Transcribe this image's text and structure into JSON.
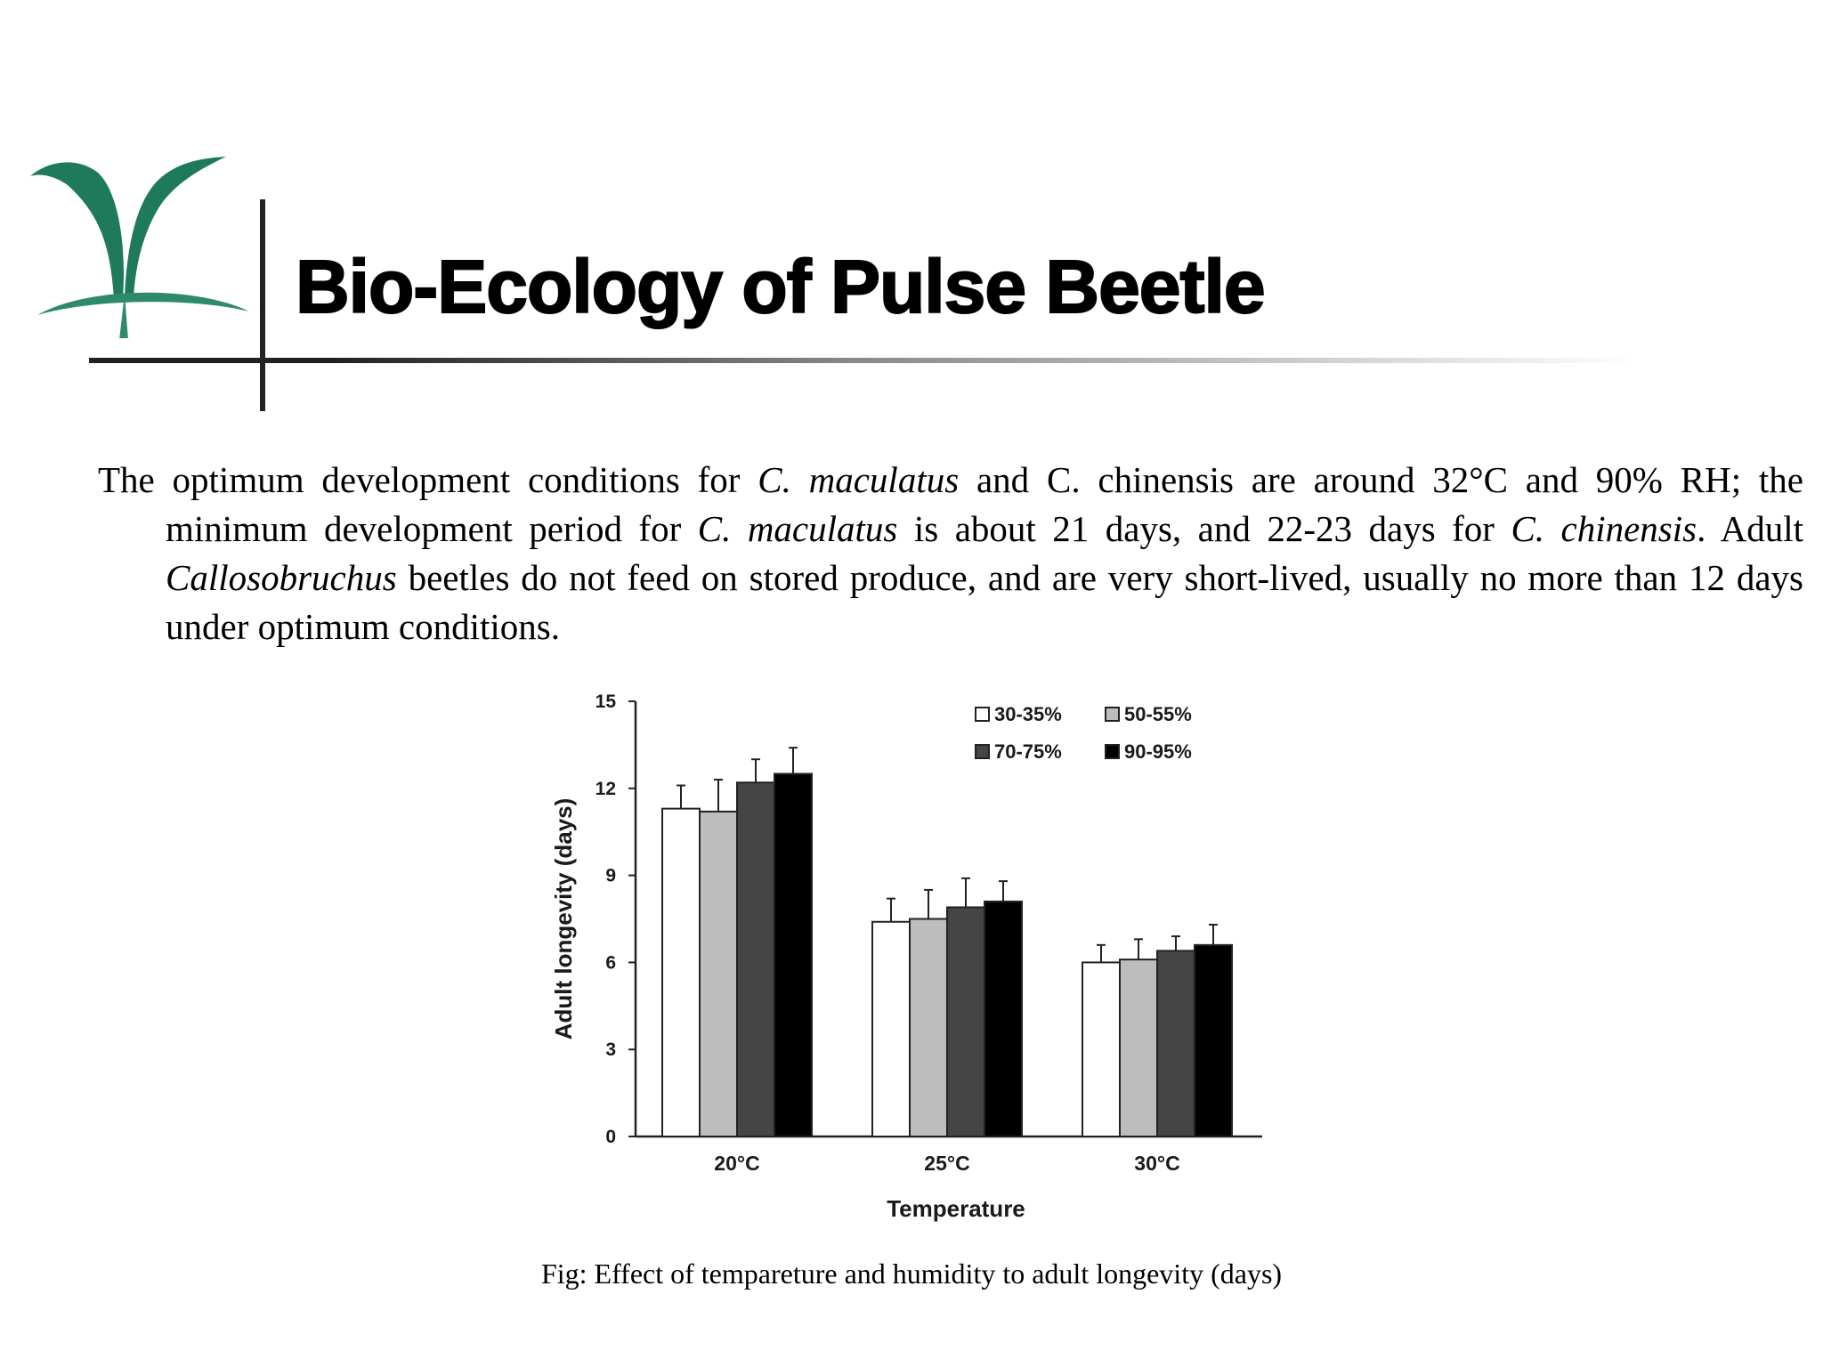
{
  "slide": {
    "title": "Bio-Ecology of Pulse Beetle",
    "paragraph": [
      {
        "text": "The optimum development conditions for ",
        "italic": false
      },
      {
        "text": "C. maculatus",
        "italic": true
      },
      {
        "text": " and C. chinensis are around 32°C and 90% RH; the minimum development period for ",
        "italic": false
      },
      {
        "text": "C. maculatus",
        "italic": true
      },
      {
        "text": " is about 21 days, and 22-23 days for ",
        "italic": false
      },
      {
        "text": "C. chinensis",
        "italic": true
      },
      {
        "text": ". Adult ",
        "italic": false
      },
      {
        "text": "Callosobruchus",
        "italic": true
      },
      {
        "text": " beetles do not feed on stored produce, and are very short-lived, usually no more than 12 days under optimum conditions.",
        "italic": false
      }
    ],
    "caption": "Fig: Effect of tempareture and humidity to adult longevity (days)",
    "logo_colors": {
      "leaf": "#1f7a5c",
      "stem": "#2f8a6a"
    }
  },
  "chart_data": {
    "type": "bar",
    "title": "",
    "xlabel": "Temperature",
    "ylabel": "Adult longevity (days)",
    "ylim": [
      0,
      15
    ],
    "yticks": [
      0,
      3,
      6,
      9,
      12,
      15
    ],
    "categories": [
      "20°C",
      "25°C",
      "30°C"
    ],
    "legend_position": "top-right",
    "grid": false,
    "series": [
      {
        "name": "30-35%",
        "color": "#ffffff",
        "values": [
          11.3,
          7.4,
          6.0
        ],
        "errors": [
          0.8,
          0.8,
          0.6
        ]
      },
      {
        "name": "50-55%",
        "color": "#bdbdbd",
        "values": [
          11.2,
          7.5,
          6.1
        ],
        "errors": [
          1.1,
          1.0,
          0.7
        ]
      },
      {
        "name": "70-75%",
        "color": "#454545",
        "values": [
          12.2,
          7.9,
          6.4
        ],
        "errors": [
          0.8,
          1.0,
          0.5
        ]
      },
      {
        "name": "90-95%",
        "color": "#000000",
        "values": [
          12.5,
          8.1,
          6.6
        ],
        "errors": [
          0.9,
          0.7,
          0.7
        ]
      }
    ]
  }
}
